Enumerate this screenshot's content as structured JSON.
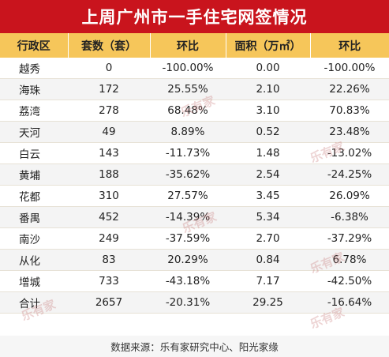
{
  "title": "上周广州市一手住宅网签情况",
  "headers": [
    "行政区",
    "套数（套）",
    "环比",
    "面积（万㎡）",
    "环比"
  ],
  "rows": [
    [
      "越秀",
      "0",
      "-100.00%",
      "0.00",
      "-100.00%"
    ],
    [
      "海珠",
      "172",
      "25.55%",
      "2.10",
      "22.26%"
    ],
    [
      "荔湾",
      "278",
      "68.48%",
      "3.10",
      "70.83%"
    ],
    [
      "天河",
      "49",
      "8.89%",
      "0.52",
      "23.48%"
    ],
    [
      "白云",
      "143",
      "-11.73%",
      "1.48",
      "-13.02%"
    ],
    [
      "黄埔",
      "188",
      "-35.62%",
      "2.54",
      "-24.25%"
    ],
    [
      "花都",
      "310",
      "27.57%",
      "3.45",
      "26.09%"
    ],
    [
      "番禺",
      "452",
      "-14.39%",
      "5.34",
      "-6.38%"
    ],
    [
      "南沙",
      "249",
      "-37.59%",
      "2.70",
      "-37.29%"
    ],
    [
      "从化",
      "83",
      "20.29%",
      "0.84",
      "6.78%"
    ],
    [
      "增城",
      "733",
      "-43.18%",
      "7.17",
      "-42.50%"
    ],
    [
      "合计",
      "2657",
      "-20.31%",
      "29.25",
      "-16.64%"
    ]
  ],
  "source": "数据来源：乐有家研究中心、阳光家缘",
  "watermark": "乐有家",
  "colors": {
    "title_bg": "#c9141d",
    "header_bg": "#f6c65a",
    "alt_row": "#f4f4f4"
  }
}
